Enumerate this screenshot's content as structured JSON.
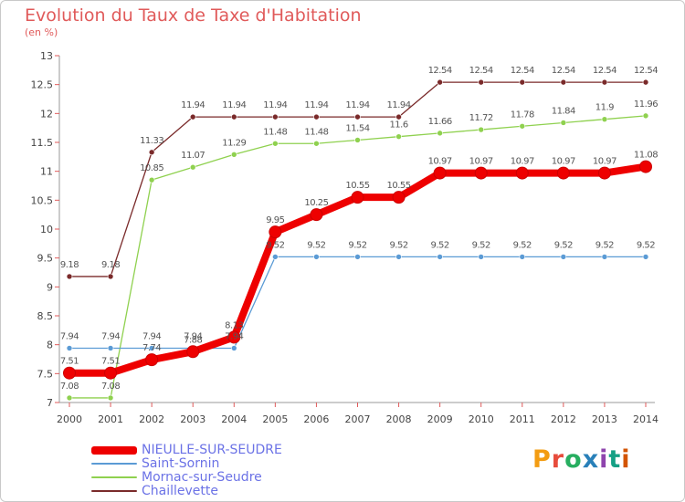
{
  "chart_data": {
    "type": "line",
    "title": "Evolution du Taux de Taxe d'Habitation",
    "subtitle": "(en %)",
    "x": [
      "2000",
      "2001",
      "2002",
      "2003",
      "2004",
      "2005",
      "2006",
      "2007",
      "2008",
      "2009",
      "2010",
      "2011",
      "2012",
      "2013",
      "2014"
    ],
    "ylim": [
      7,
      13
    ],
    "yticks": [
      "7",
      "7.5",
      "8",
      "8.5",
      "9",
      "9.5",
      "10",
      "10.5",
      "11",
      "11.5",
      "12",
      "12.5",
      "13"
    ],
    "grid": false,
    "legend_position": "bottom-left",
    "series": [
      {
        "name": "NIEULLE-SUR-SEUDRE",
        "color": "#ee0000",
        "values": [
          7.51,
          7.51,
          7.74,
          7.88,
          8.13,
          9.95,
          10.25,
          10.55,
          10.55,
          10.97,
          10.97,
          10.97,
          10.97,
          10.97,
          11.08
        ],
        "labels": [
          "7.51",
          "7.51",
          "7.74",
          "7.88",
          "8.13",
          "9.95",
          "10.25",
          "10.55",
          "10.55",
          "10.97",
          "10.97",
          "10.97",
          "10.97",
          "10.97",
          "11.08"
        ]
      },
      {
        "name": "Saint-Sornin",
        "color": "#5b9bd5",
        "values": [
          7.94,
          7.94,
          7.94,
          7.94,
          7.94,
          9.52,
          9.52,
          9.52,
          9.52,
          9.52,
          9.52,
          9.52,
          9.52,
          9.52,
          9.52
        ],
        "labels": [
          "7.94",
          "7.94",
          "7.94",
          "7.94",
          "7.94",
          "9.52",
          "9.52",
          "9.52",
          "9.52",
          "9.52",
          "9.52",
          "9.52",
          "9.52",
          "9.52",
          "9.52"
        ]
      },
      {
        "name": "Mornac-sur-Seudre",
        "color": "#8fd14f",
        "values": [
          7.08,
          7.08,
          10.85,
          11.07,
          11.29,
          11.48,
          11.48,
          11.54,
          11.6,
          11.66,
          11.72,
          11.78,
          11.84,
          11.9,
          11.96
        ],
        "labels": [
          "7.08",
          "7.08",
          "10.85",
          "11.07",
          "11.29",
          "11.48",
          "11.48",
          "11.54",
          "11.6",
          "11.66",
          "11.72",
          "11.78",
          "11.84",
          "11.9",
          "11.96"
        ]
      },
      {
        "name": "Chaillevette",
        "color": "#7a2a2a",
        "values": [
          9.18,
          9.18,
          11.33,
          11.94,
          11.94,
          11.94,
          11.94,
          11.94,
          11.94,
          12.54,
          12.54,
          12.54,
          12.54,
          12.54,
          12.54
        ],
        "labels": [
          "9.18",
          "9.18",
          "11.33",
          "11.94",
          "11.94",
          "11.94",
          "11.94",
          "11.94",
          "11.94",
          "12.54",
          "12.54",
          "12.54",
          "12.54",
          "12.54",
          "12.54"
        ]
      }
    ]
  },
  "logo": {
    "text": "Proxiti"
  }
}
